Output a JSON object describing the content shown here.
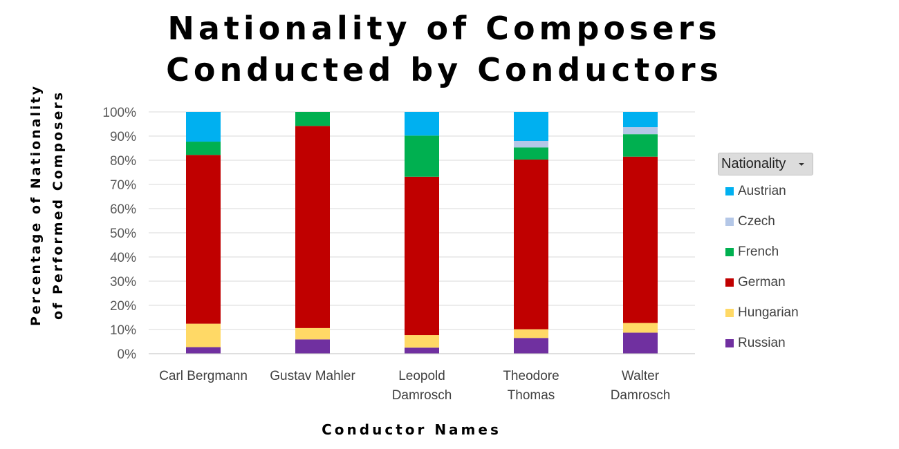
{
  "chart_data": {
    "type": "bar",
    "stacked": true,
    "normalized": true,
    "title_lines": [
      "Nationality of Composers",
      "Conducted by Conductors"
    ],
    "xlabel": "Conductor Names",
    "ylabel_lines": [
      "Percentage of Nationality",
      "of Performed Composers"
    ],
    "categories": [
      [
        "Carl Bergmann"
      ],
      [
        "Gustav Mahler"
      ],
      [
        "Leopold",
        "Damrosch"
      ],
      [
        "Theodore",
        "Thomas"
      ],
      [
        "Walter",
        "Damrosch"
      ]
    ],
    "yticks": [
      "0%",
      "10%",
      "20%",
      "30%",
      "40%",
      "50%",
      "60%",
      "70%",
      "80%",
      "90%",
      "100%"
    ],
    "ylim": [
      0,
      1
    ],
    "grid": true,
    "legend_title": "Nationality",
    "legend_position": "right",
    "series": [
      {
        "name": "Austrian",
        "color": "#00b0f0",
        "values": [
          0.123,
          0.0,
          0.098,
          0.12,
          0.063
        ]
      },
      {
        "name": "Czech",
        "color": "#b4c7e7",
        "values": [
          0.0,
          0.0,
          0.0,
          0.027,
          0.029
        ]
      },
      {
        "name": "French",
        "color": "#00b050",
        "values": [
          0.055,
          0.058,
          0.17,
          0.05,
          0.093
        ]
      },
      {
        "name": "German",
        "color": "#c00000",
        "values": [
          0.698,
          0.836,
          0.655,
          0.702,
          0.688
        ]
      },
      {
        "name": "Hungarian",
        "color": "#ffd966",
        "values": [
          0.097,
          0.047,
          0.052,
          0.036,
          0.04
        ]
      },
      {
        "name": "Russian",
        "color": "#7030a0",
        "values": [
          0.027,
          0.059,
          0.025,
          0.065,
          0.087
        ]
      }
    ]
  }
}
